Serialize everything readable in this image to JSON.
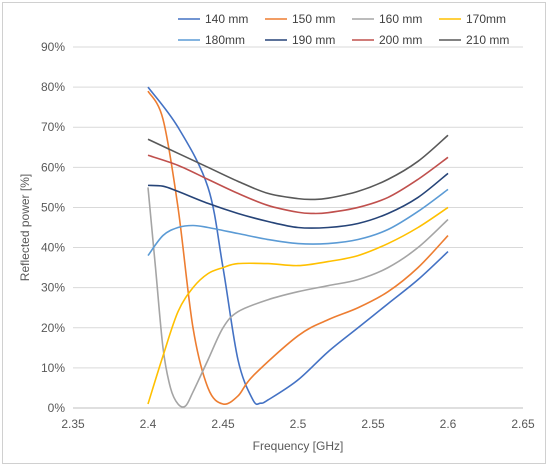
{
  "chart_data": {
    "type": "line",
    "title": "",
    "xlabel": "Frequency [GHz]",
    "ylabel": "Reflected power [%]",
    "xlim": [
      2.35,
      2.65
    ],
    "ylim": [
      0,
      90
    ],
    "xticks": [
      "2.35",
      "2.4",
      "2.45",
      "2.5",
      "2.55",
      "2.6",
      "2.65"
    ],
    "yticks": [
      "0%",
      "10%",
      "20%",
      "30%",
      "40%",
      "50%",
      "60%",
      "70%",
      "80%",
      "90%"
    ],
    "grid": "horizontal",
    "legend_position": "top",
    "series": [
      {
        "name": "140 mm",
        "color": "#4472C4",
        "x": [
          2.4,
          2.42,
          2.44,
          2.45,
          2.46,
          2.47,
          2.475,
          2.48,
          2.5,
          2.52,
          2.54,
          2.56,
          2.58,
          2.6
        ],
        "y": [
          80,
          70,
          55,
          35,
          12,
          2,
          1.2,
          2,
          7,
          14,
          20,
          26,
          32,
          39
        ]
      },
      {
        "name": "150 mm",
        "color": "#ED7D31",
        "x": [
          2.4,
          2.41,
          2.42,
          2.43,
          2.44,
          2.45,
          2.46,
          2.47,
          2.5,
          2.52,
          2.54,
          2.56,
          2.58,
          2.6
        ],
        "y": [
          79,
          72,
          50,
          20,
          5,
          1,
          3,
          8,
          18,
          22,
          25,
          29,
          35,
          43
        ]
      },
      {
        "name": "160 mm",
        "color": "#A5A5A5",
        "x": [
          2.4,
          2.405,
          2.41,
          2.415,
          2.42,
          2.425,
          2.43,
          2.44,
          2.45,
          2.46,
          2.48,
          2.5,
          2.52,
          2.54,
          2.56,
          2.58,
          2.6
        ],
        "y": [
          55,
          35,
          15,
          5,
          1,
          0.5,
          4,
          12,
          20,
          24,
          27,
          29,
          30.5,
          32,
          35,
          40,
          47
        ]
      },
      {
        "name": "170mm",
        "color": "#FFC000",
        "x": [
          2.4,
          2.41,
          2.42,
          2.43,
          2.44,
          2.45,
          2.46,
          2.48,
          2.5,
          2.52,
          2.54,
          2.56,
          2.58,
          2.6
        ],
        "y": [
          1,
          13,
          24,
          30,
          33.5,
          35,
          36,
          36,
          35.5,
          36.5,
          38,
          41,
          45,
          50
        ]
      },
      {
        "name": "180mm",
        "color": "#5B9BD5",
        "x": [
          2.4,
          2.41,
          2.42,
          2.43,
          2.44,
          2.46,
          2.48,
          2.5,
          2.52,
          2.54,
          2.56,
          2.58,
          2.6
        ],
        "y": [
          38,
          43,
          45,
          45.5,
          45,
          43.5,
          42,
          41,
          41,
          42,
          44.5,
          49,
          54.5
        ]
      },
      {
        "name": "190 mm",
        "color": "#264478",
        "x": [
          2.4,
          2.41,
          2.42,
          2.44,
          2.46,
          2.48,
          2.5,
          2.52,
          2.54,
          2.56,
          2.58,
          2.6
        ],
        "y": [
          55.5,
          55.3,
          54,
          51,
          48.5,
          46.5,
          45,
          45,
          46,
          48.5,
          52.5,
          58.5
        ]
      },
      {
        "name": "200 mm",
        "color": "#C0504D",
        "x": [
          2.4,
          2.42,
          2.44,
          2.46,
          2.48,
          2.5,
          2.51,
          2.52,
          2.54,
          2.56,
          2.58,
          2.6
        ],
        "y": [
          63,
          60.5,
          57,
          53.5,
          50.5,
          48.8,
          48.5,
          48.7,
          50,
          52.5,
          57,
          62.5
        ]
      },
      {
        "name": "210 mm",
        "color": "#595959",
        "x": [
          2.4,
          2.42,
          2.44,
          2.46,
          2.48,
          2.5,
          2.51,
          2.52,
          2.54,
          2.56,
          2.58,
          2.6
        ],
        "y": [
          67,
          63.5,
          60,
          56.5,
          53.5,
          52.2,
          52,
          52.3,
          54,
          57,
          61.5,
          68
        ]
      }
    ]
  }
}
